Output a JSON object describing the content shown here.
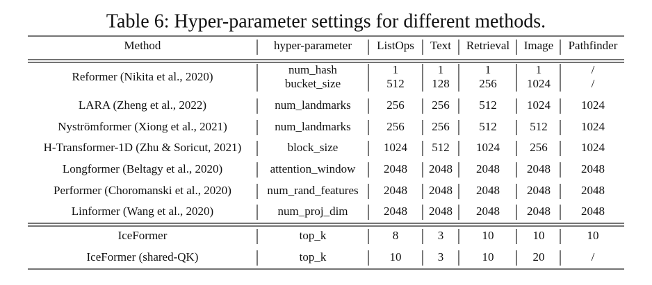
{
  "caption": "Table 6: Hyper-parameter settings for different methods.",
  "table": {
    "header": [
      "Method",
      "hyper-parameter",
      "ListOps",
      "Text",
      "Retrieval",
      "Image",
      "Pathfinder"
    ],
    "rows": [
      [
        [
          "Reformer (Nikita et al., 2020)"
        ],
        [
          "num_hash",
          "bucket_size"
        ],
        [
          "1",
          "512"
        ],
        [
          "1",
          "128"
        ],
        [
          "1",
          "256"
        ],
        [
          "1",
          "1024"
        ],
        [
          "/",
          "/"
        ]
      ],
      [
        [
          "LARA (Zheng et al., 2022)"
        ],
        [
          "num_landmarks"
        ],
        [
          "256"
        ],
        [
          "256"
        ],
        [
          "512"
        ],
        [
          "1024"
        ],
        [
          "1024"
        ]
      ],
      [
        [
          "Nyströmformer (Xiong et al., 2021)"
        ],
        [
          "num_landmarks"
        ],
        [
          "256"
        ],
        [
          "256"
        ],
        [
          "512"
        ],
        [
          "512"
        ],
        [
          "1024"
        ]
      ],
      [
        [
          "H-Transformer-1D (Zhu & Soricut, 2021)"
        ],
        [
          "block_size"
        ],
        [
          "1024"
        ],
        [
          "512"
        ],
        [
          "1024"
        ],
        [
          "256"
        ],
        [
          "1024"
        ]
      ],
      [
        [
          "Longformer (Beltagy et al., 2020)"
        ],
        [
          "attention_window"
        ],
        [
          "2048"
        ],
        [
          "2048"
        ],
        [
          "2048"
        ],
        [
          "2048"
        ],
        [
          "2048"
        ]
      ],
      [
        [
          "Performer (Choromanski et al., 2020)"
        ],
        [
          "num_rand_features"
        ],
        [
          "2048"
        ],
        [
          "2048"
        ],
        [
          "2048"
        ],
        [
          "2048"
        ],
        [
          "2048"
        ]
      ],
      [
        [
          "Linformer (Wang et al., 2020)"
        ],
        [
          "num_proj_dim"
        ],
        [
          "2048"
        ],
        [
          "2048"
        ],
        [
          "2048"
        ],
        [
          "2048"
        ],
        [
          "2048"
        ]
      ],
      [
        [
          "IceFormer"
        ],
        [
          "top_k"
        ],
        [
          "8"
        ],
        [
          "3"
        ],
        [
          "10"
        ],
        [
          "10"
        ],
        [
          "10"
        ]
      ],
      [
        [
          "IceFormer (shared-QK)"
        ],
        [
          "top_k"
        ],
        [
          "10"
        ],
        [
          "3"
        ],
        [
          "10"
        ],
        [
          "20"
        ],
        [
          "/"
        ]
      ]
    ]
  }
}
